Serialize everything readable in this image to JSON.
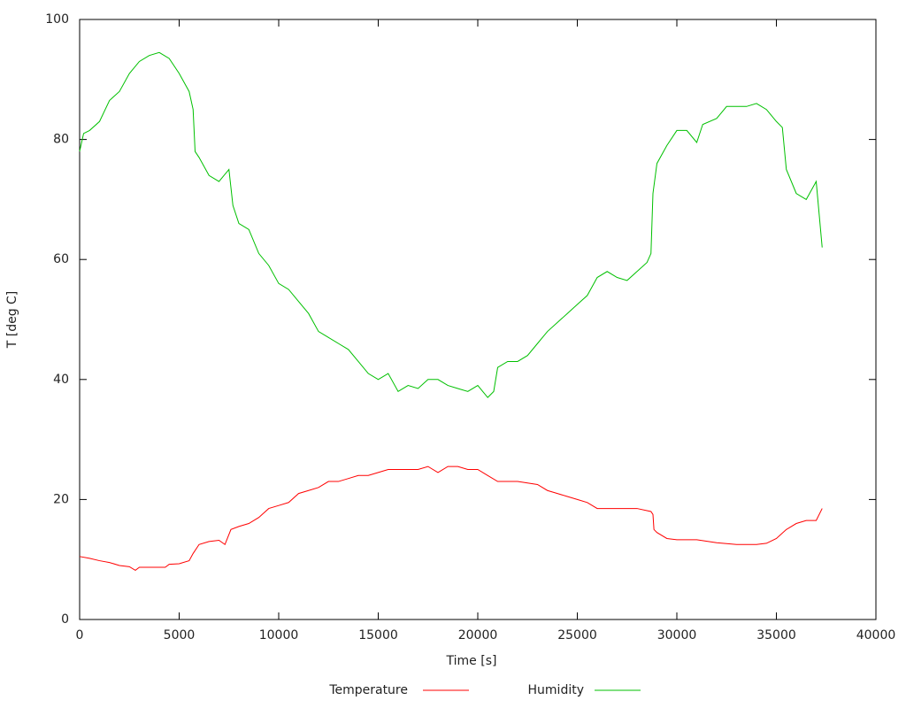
{
  "chart_data": {
    "type": "line",
    "xlabel": "Time [s]",
    "ylabel": "T [deg C]",
    "xlim": [
      0,
      40000
    ],
    "xticks": [
      0,
      5000,
      10000,
      15000,
      20000,
      25000,
      30000,
      35000,
      40000
    ],
    "ylim": [
      0,
      100
    ],
    "yticks": [
      0,
      20,
      40,
      60,
      80,
      100
    ],
    "legend": "bottom",
    "series": [
      {
        "name": "Temperature",
        "color": "#ff0000",
        "x": [
          0,
          500,
          1000,
          1500,
          2000,
          2500,
          2800,
          3000,
          4000,
          4300,
          4500,
          5000,
          5500,
          5700,
          6000,
          6500,
          7000,
          7300,
          7600,
          8000,
          8500,
          9000,
          9500,
          10000,
          10500,
          11000,
          11500,
          12000,
          12500,
          13000,
          13500,
          14000,
          14500,
          15000,
          15500,
          16000,
          16500,
          17000,
          17500,
          18000,
          18500,
          19000,
          19500,
          20000,
          20500,
          21000,
          22000,
          23000,
          23500,
          24000,
          24500,
          25000,
          25500,
          26000,
          27000,
          28000,
          28700,
          28800,
          28850,
          29000,
          29500,
          30000,
          31000,
          32000,
          33000,
          34000,
          34500,
          35000,
          35500,
          36000,
          36500,
          37000,
          37300
        ],
        "values": [
          10.5,
          10.2,
          9.8,
          9.5,
          9,
          8.8,
          8.2,
          8.7,
          8.7,
          8.7,
          9.2,
          9.3,
          9.8,
          11,
          12.5,
          13,
          13.2,
          12.5,
          15,
          15.5,
          16,
          17,
          18.5,
          19,
          19.5,
          21,
          21.5,
          22,
          23,
          23,
          23.5,
          24,
          24,
          24.5,
          25,
          25,
          25,
          25,
          25.5,
          24.5,
          25.5,
          25.5,
          25,
          25,
          24,
          23,
          23,
          22.5,
          21.5,
          21,
          20.5,
          20,
          19.5,
          18.5,
          18.5,
          18.5,
          18,
          17.5,
          15,
          14.5,
          13.5,
          13.3,
          13.3,
          12.8,
          12.5,
          12.5,
          12.7,
          13.5,
          15,
          16,
          16.5,
          16.5,
          18.5
        ]
      },
      {
        "name": "Humidity",
        "color": "#00c000",
        "x": [
          0,
          200,
          500,
          1000,
          1500,
          2000,
          2500,
          3000,
          3500,
          4000,
          4500,
          5000,
          5500,
          5700,
          5800,
          6000,
          6500,
          7000,
          7500,
          7700,
          8000,
          8500,
          9000,
          9500,
          10000,
          10500,
          11000,
          11500,
          12000,
          12500,
          13000,
          13500,
          14000,
          14500,
          15000,
          15500,
          16000,
          16500,
          17000,
          17500,
          18000,
          18500,
          19000,
          19500,
          20000,
          20500,
          20800,
          21000,
          21500,
          22000,
          22500,
          23000,
          23500,
          24000,
          24500,
          25000,
          25500,
          26000,
          26500,
          27000,
          27500,
          28000,
          28500,
          28700,
          28800,
          29000,
          29500,
          30000,
          30500,
          31000,
          31300,
          32000,
          32500,
          33000,
          33500,
          34000,
          34500,
          35000,
          35300,
          35500,
          36000,
          36500,
          37000,
          37300
        ],
        "values": [
          78,
          81,
          81.5,
          83,
          86.5,
          88,
          91,
          93,
          94,
          94.5,
          93.5,
          91,
          88,
          85,
          78,
          77,
          74,
          73,
          75,
          69,
          66,
          65,
          61,
          59,
          56,
          55,
          53,
          51,
          48,
          47,
          46,
          45,
          43,
          41,
          40,
          41,
          38,
          39,
          38.5,
          40,
          40,
          39,
          38.5,
          38,
          39,
          37,
          38,
          42,
          43,
          43,
          44,
          46,
          48,
          49.5,
          51,
          52.5,
          54,
          57,
          58,
          57,
          56.5,
          58,
          59.5,
          61,
          71,
          76,
          79,
          81.5,
          81.5,
          79.5,
          82.5,
          83.5,
          85.5,
          85.5,
          85.5,
          86,
          85,
          83,
          82,
          75,
          71,
          70,
          73,
          62
        ]
      }
    ]
  }
}
